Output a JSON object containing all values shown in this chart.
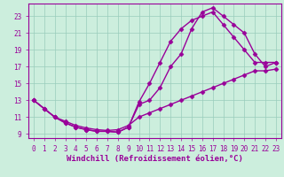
{
  "xlabel": "Windchill (Refroidissement éolien,°C)",
  "ylabel": "",
  "bg_color": "#cceedd",
  "line_color": "#990099",
  "grid_color": "#99ccbb",
  "xlim": [
    -0.5,
    23.5
  ],
  "ylim": [
    8.5,
    24.5
  ],
  "xticks": [
    0,
    1,
    2,
    3,
    4,
    5,
    6,
    7,
    8,
    9,
    10,
    11,
    12,
    13,
    14,
    15,
    16,
    17,
    18,
    19,
    20,
    21,
    22,
    23
  ],
  "yticks": [
    9,
    11,
    13,
    15,
    17,
    19,
    21,
    23
  ],
  "line1_x": [
    0,
    1,
    2,
    3,
    4,
    5,
    6,
    7,
    8,
    9,
    10,
    11,
    12,
    13,
    14,
    15,
    16,
    17,
    18,
    19,
    20,
    21,
    22,
    23
  ],
  "line1_y": [
    13.0,
    12.0,
    11.0,
    10.3,
    9.8,
    9.5,
    9.3,
    9.3,
    9.2,
    9.8,
    12.8,
    15.0,
    17.5,
    20.0,
    21.5,
    22.5,
    23.0,
    23.5,
    22.0,
    20.5,
    19.0,
    17.5,
    17.5,
    17.5
  ],
  "line2_x": [
    0,
    1,
    2,
    3,
    4,
    5,
    6,
    7,
    8,
    9,
    10,
    11,
    12,
    13,
    14,
    15,
    16,
    17,
    18,
    19,
    20,
    21,
    22,
    23
  ],
  "line2_y": [
    13.0,
    12.0,
    11.0,
    10.3,
    9.8,
    9.5,
    9.3,
    9.3,
    9.2,
    9.8,
    12.5,
    13.0,
    14.5,
    17.0,
    18.5,
    21.5,
    23.5,
    24.0,
    23.0,
    22.0,
    21.0,
    18.5,
    17.0,
    17.5
  ],
  "line3_x": [
    0,
    1,
    2,
    3,
    4,
    5,
    6,
    7,
    8,
    9,
    10,
    11,
    12,
    13,
    14,
    15,
    16,
    17,
    18,
    19,
    20,
    21,
    22,
    23
  ],
  "line3_y": [
    13.0,
    12.0,
    11.0,
    10.5,
    10.0,
    9.7,
    9.5,
    9.4,
    9.5,
    10.0,
    11.0,
    11.5,
    12.0,
    12.5,
    13.0,
    13.5,
    14.0,
    14.5,
    15.0,
    15.5,
    16.0,
    16.5,
    16.5,
    16.7
  ],
  "marker": "D",
  "markersize": 2.5,
  "linewidth": 1.0,
  "tick_fontsize": 5.5,
  "xlabel_fontsize": 6.5,
  "figsize": [
    3.2,
    2.0
  ],
  "dpi": 100
}
